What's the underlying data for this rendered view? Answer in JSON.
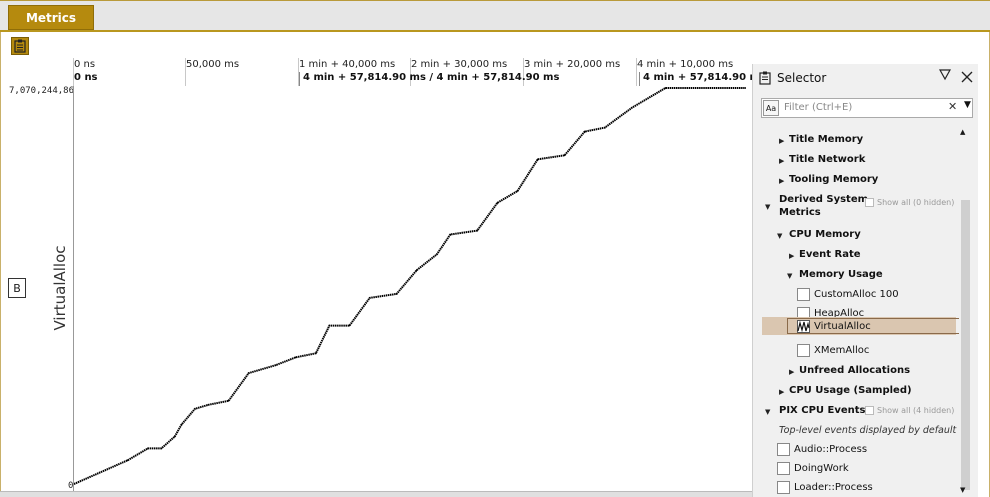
{
  "tab": {
    "label": "Metrics"
  },
  "ruler": {
    "ticks": [
      "0 ns",
      "50,000 ms",
      "1 min + 40,000 ms",
      "2 min + 30,000 ms",
      "3 min + 20,000 ms",
      "4 min + 10,000 ms"
    ],
    "selection_start": "0 ns",
    "selection_range": "4 min + 57,814.90 ms / 4 min + 57,814.90 ms",
    "selection_end": "4 min + 57,814.90 ms"
  },
  "chart": {
    "y_max_label": "7,070,244,864",
    "y_min_label": "0",
    "y_label": "VirtualAlloc",
    "b_button": "B"
  },
  "chart_data": {
    "type": "line",
    "title": "",
    "xlabel": "",
    "ylabel": "VirtualAlloc",
    "ylim": [
      0,
      7070244864
    ],
    "series": [
      {
        "values": [
          [
            0,
            0
          ],
          [
            8,
            0.06
          ],
          [
            11,
            0.09
          ],
          [
            13,
            0.09
          ],
          [
            15,
            0.12
          ],
          [
            16,
            0.15
          ],
          [
            18,
            0.19
          ],
          [
            20,
            0.2
          ],
          [
            23,
            0.21
          ],
          [
            26,
            0.28
          ],
          [
            30,
            0.3
          ],
          [
            33,
            0.32
          ],
          [
            36,
            0.33
          ],
          [
            38,
            0.4
          ],
          [
            41,
            0.4
          ],
          [
            44,
            0.47
          ],
          [
            48,
            0.48
          ],
          [
            51,
            0.54
          ],
          [
            54,
            0.58
          ],
          [
            56,
            0.63
          ],
          [
            60,
            0.64
          ],
          [
            63,
            0.71
          ],
          [
            66,
            0.74
          ],
          [
            69,
            0.82
          ],
          [
            73,
            0.83
          ],
          [
            76,
            0.89
          ],
          [
            79,
            0.9
          ],
          [
            83,
            0.95
          ],
          [
            88,
            1.0
          ],
          [
            100,
            1.0
          ]
        ]
      }
    ]
  },
  "selector": {
    "title": "Selector",
    "filter_placeholder": "Filter (Ctrl+E)",
    "aa_label": "Aa",
    "items": {
      "title_memory": "Title Memory",
      "title_network": "Title Network",
      "tooling_memory": "Tooling Memory",
      "derived_line1": "Derived System",
      "derived_line2": "Metrics",
      "show_all_0": "Show all (0 hidden)",
      "cpu_memory": "CPU Memory",
      "event_rate": "Event Rate",
      "memory_usage": "Memory Usage",
      "custom_alloc": "CustomAlloc 100",
      "heap_alloc": "HeapAlloc",
      "virtual_alloc": "VirtualAlloc",
      "xmem_alloc": "XMemAlloc",
      "unfreed": "Unfreed Allocations",
      "cpu_usage": "CPU Usage (Sampled)",
      "pix_cpu_events": "PIX CPU Events",
      "show_all_4": "Show all (4 hidden)",
      "top_level_note": "Top-level events displayed by default",
      "audio_process": "Audio::Process",
      "doing_work": "DoingWork",
      "loader_process": "Loader::Process"
    }
  },
  "colors": {
    "accent": "#b58a0e",
    "selection_highlight": "#dac6b0",
    "line": "#000000"
  }
}
